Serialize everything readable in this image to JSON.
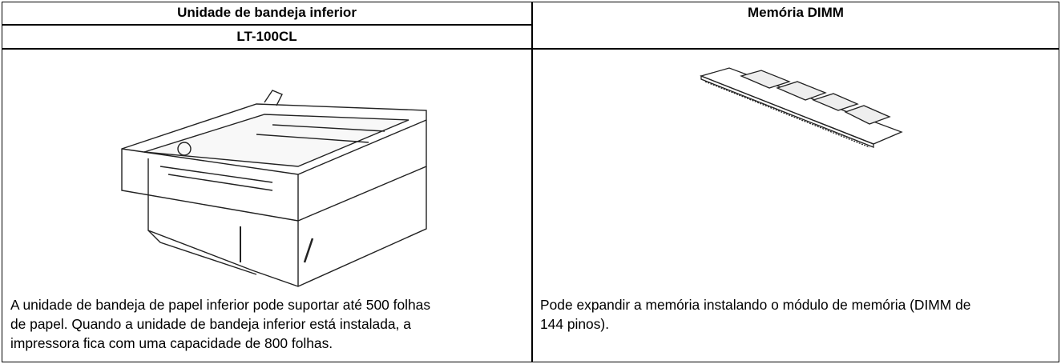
{
  "table": {
    "headers": [
      "Unidade de bandeja inferior",
      "Memória DIMM"
    ],
    "subheader": "LT-100CL",
    "descriptions": [
      "A unidade de bandeja de papel inferior pode suportar até 500 folhas de papel. Quando a unidade de bandeja inferior está instalada, a impressora fica com uma capacidade de 800 folhas.",
      "Pode expandir a memória instalando o módulo de memória (DIMM de 144 pinos)."
    ]
  }
}
